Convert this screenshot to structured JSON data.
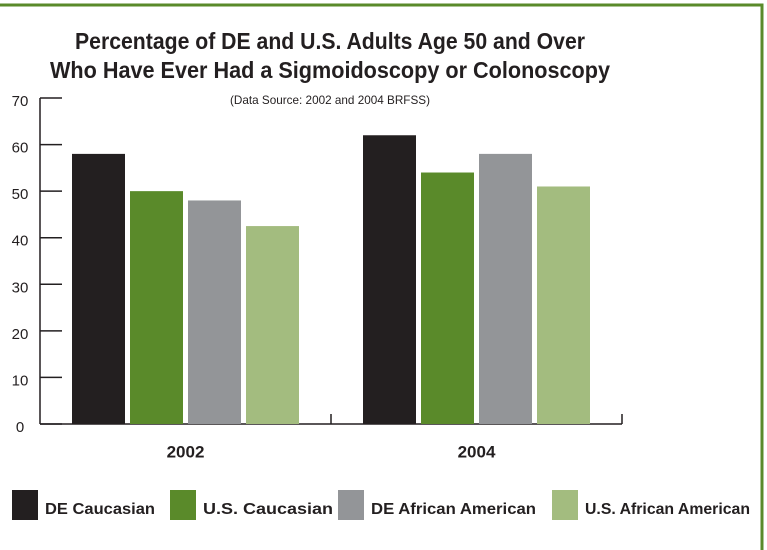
{
  "chart_data": {
    "type": "bar",
    "title": [
      "Percentage of DE and U.S. Adults Age 50 and Over",
      "Who Have Ever Had a Sigmoidoscopy or Colonoscopy"
    ],
    "subtitle": "(Data Source: 2002 and 2004 BRFSS)",
    "categories": [
      "2002",
      "2004"
    ],
    "series": [
      {
        "name": "DE Caucasian",
        "color": "#231f20",
        "values": [
          58,
          62
        ]
      },
      {
        "name": "U.S. Caucasian",
        "color": "#5a8a2a",
        "values": [
          50,
          54
        ]
      },
      {
        "name": "DE African American",
        "color": "#939598",
        "values": [
          48,
          58
        ]
      },
      {
        "name": "U.S. African American",
        "color": "#a3bc7f",
        "values": [
          42.5,
          51
        ]
      }
    ],
    "ylim": [
      0,
      70
    ],
    "yticks": [
      0,
      10,
      20,
      30,
      40,
      50,
      60,
      70
    ],
    "grid": false
  }
}
